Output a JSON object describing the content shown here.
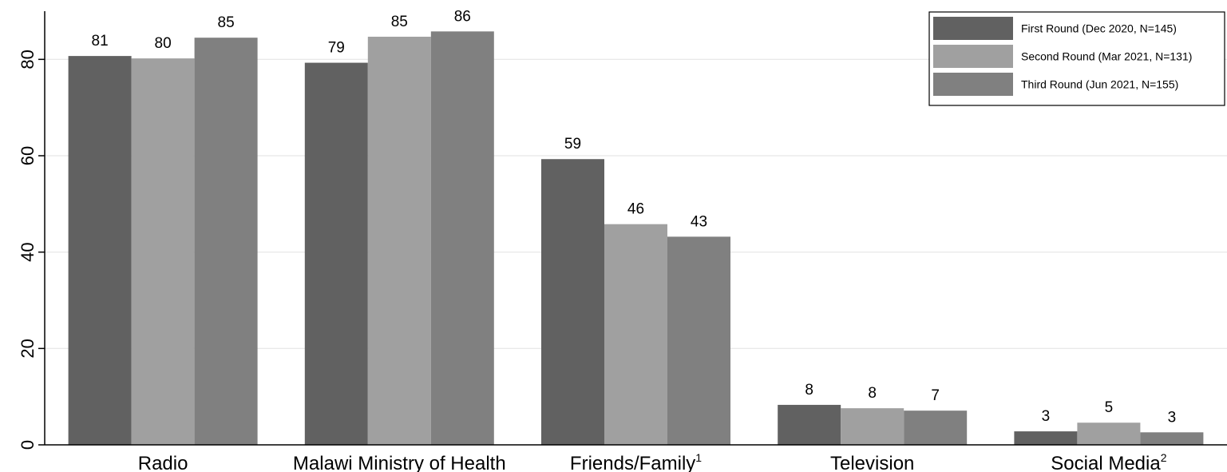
{
  "chart_data": {
    "type": "bar",
    "title": "",
    "xlabel": "",
    "ylabel": "",
    "categories": [
      "Radio",
      "Malawi Ministry of Health",
      "Friends/Family",
      "Television",
      "Social Media"
    ],
    "category_superscripts": [
      "",
      "",
      "1",
      "",
      "2"
    ],
    "ylim": [
      0,
      90
    ],
    "yticks": [
      0,
      20,
      40,
      60,
      80
    ],
    "grid": true,
    "legend_position": "top-right",
    "series": [
      {
        "name": "First Round (Dec 2020, N=145)",
        "color": "#616161",
        "values": [
          80.7,
          79.3,
          59.3,
          8.3,
          2.8
        ],
        "labels": [
          "81",
          "79",
          "59",
          "8",
          "3"
        ]
      },
      {
        "name": "Second Round (Mar 2021, N=131)",
        "color": "#a0a0a0",
        "values": [
          80.2,
          84.7,
          45.8,
          7.6,
          4.6
        ],
        "labels": [
          "80",
          "85",
          "46",
          "8",
          "5"
        ]
      },
      {
        "name": "Third Round (Jun 2021, N=155)",
        "color": "#808080",
        "values": [
          84.5,
          85.8,
          43.2,
          7.1,
          2.6
        ],
        "labels": [
          "85",
          "86",
          "43",
          "7",
          "3"
        ]
      }
    ]
  }
}
